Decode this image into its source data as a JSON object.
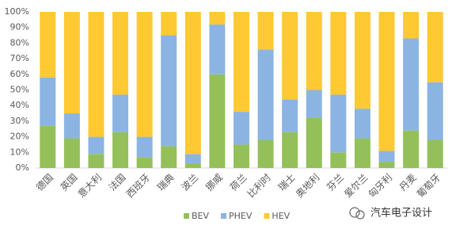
{
  "chart_data": {
    "type": "stacked_bar_percent",
    "categories": [
      "德国",
      "英国",
      "意大利",
      "法国",
      "西班牙",
      "瑞典",
      "波兰",
      "挪威",
      "荷兰",
      "比利时",
      "瑞士",
      "奥地利",
      "芬兰",
      "爱尔兰",
      "匈牙利",
      "丹麦",
      "葡萄牙"
    ],
    "series": [
      {
        "name": "BEV",
        "color": "#94c05a",
        "values": [
          27,
          19,
          9,
          23,
          7,
          14,
          3,
          60,
          15,
          18,
          23,
          32,
          10,
          19,
          4,
          24,
          18
        ]
      },
      {
        "name": "PHEV",
        "color": "#8cb4e2",
        "values": [
          31,
          16,
          11,
          24,
          13,
          71,
          6,
          32,
          21,
          58,
          21,
          18,
          37,
          19,
          7,
          59,
          37
        ]
      },
      {
        "name": "HEV",
        "color": "#ffc933",
        "values": [
          42,
          65,
          80,
          53,
          80,
          15,
          91,
          8,
          64,
          24,
          56,
          50,
          53,
          62,
          89,
          17,
          45
        ]
      }
    ],
    "ylim": [
      0,
      100
    ],
    "yticks": [
      {
        "value": 0,
        "label": "0%"
      },
      {
        "value": 10,
        "label": "10%"
      },
      {
        "value": 20,
        "label": "20%"
      },
      {
        "value": 30,
        "label": "30%"
      },
      {
        "value": 40,
        "label": "40%"
      },
      {
        "value": 50,
        "label": "50%"
      },
      {
        "value": 60,
        "label": "60%"
      },
      {
        "value": 70,
        "label": "70%"
      },
      {
        "value": 80,
        "label": "80%"
      },
      {
        "value": 90,
        "label": "90%"
      },
      {
        "value": 100,
        "label": "100%"
      }
    ],
    "grid": false,
    "legend": "bottom",
    "watermark": "汽车电子设计"
  }
}
